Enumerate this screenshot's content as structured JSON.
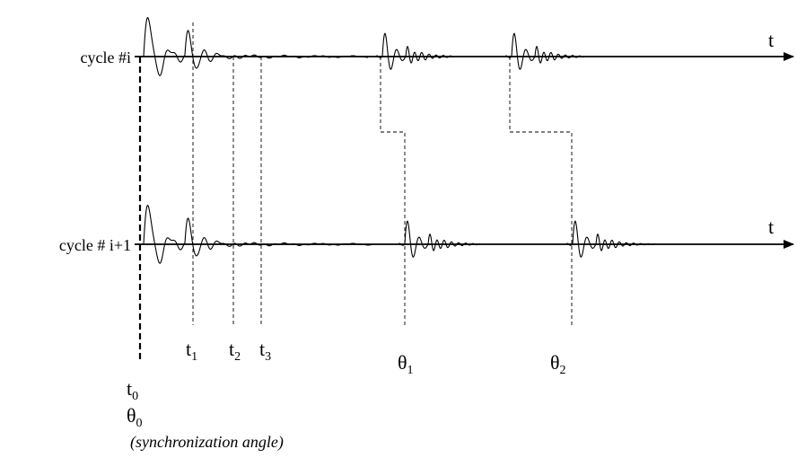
{
  "rows": [
    {
      "id": "i",
      "label": "cycle #i",
      "axis_label": "t"
    },
    {
      "id": "i1",
      "label": "cycle # i+1",
      "axis_label": "t"
    }
  ],
  "markers": {
    "t0": {
      "base": "t",
      "sub": "0"
    },
    "t1": {
      "base": "t",
      "sub": "1"
    },
    "t2": {
      "base": "t",
      "sub": "2"
    },
    "t3": {
      "base": "t",
      "sub": "3"
    },
    "theta0": {
      "base": "θ",
      "sub": "0"
    },
    "theta1": {
      "base": "θ",
      "sub": "1"
    },
    "theta2": {
      "base": "θ",
      "sub": "2"
    }
  },
  "note": "(synchronization angle)",
  "colors": {
    "ink": "#000000",
    "background": "#ffffff"
  }
}
